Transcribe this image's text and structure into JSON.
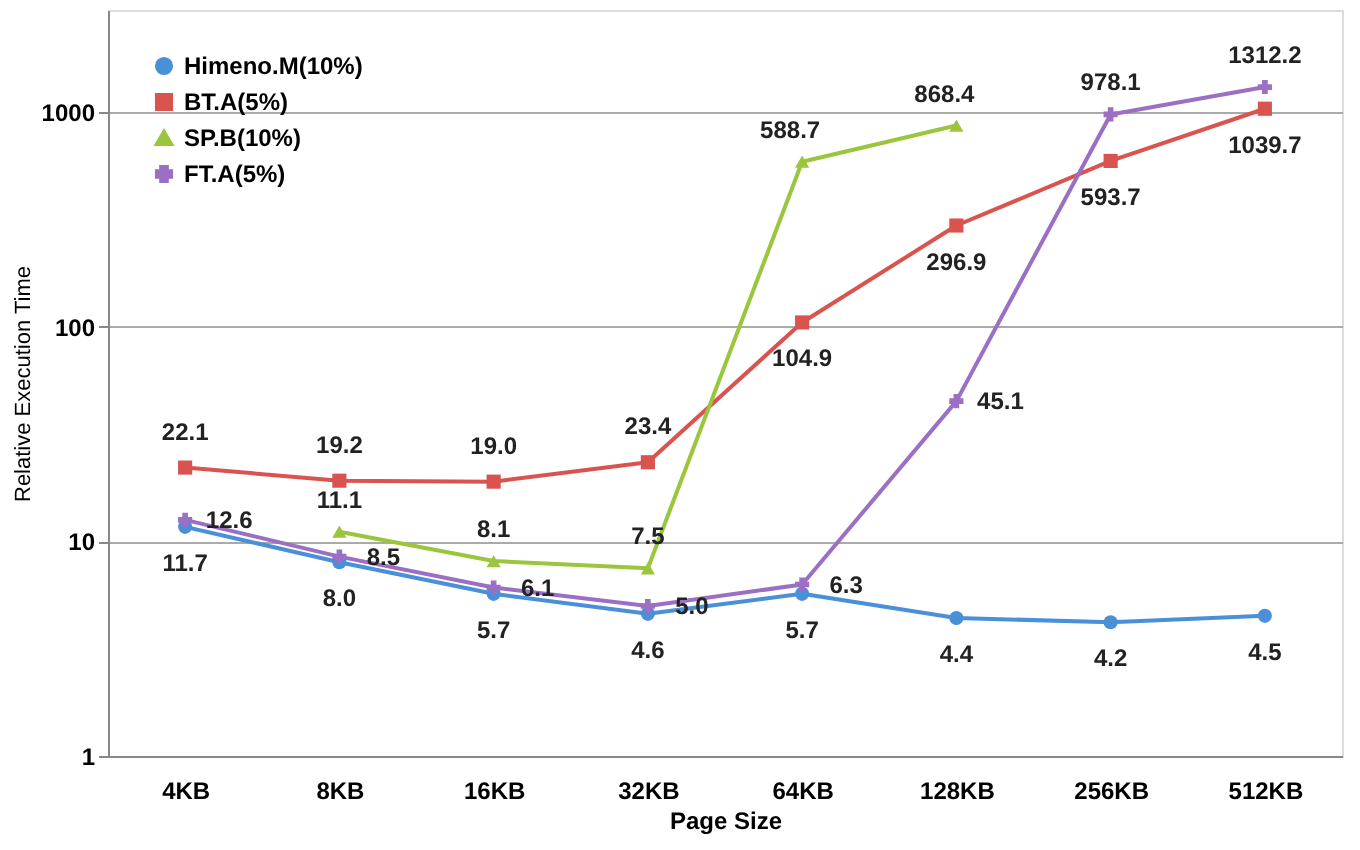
{
  "chart_data": {
    "type": "line",
    "xlabel": "Page Size",
    "ylabel": "Relative Execution Time",
    "categories": [
      "4KB",
      "8KB",
      "16KB",
      "32KB",
      "64KB",
      "128KB",
      "256KB",
      "512KB"
    ],
    "series": [
      {
        "name": "Himeno.M(10%)",
        "color": "#4a90d9",
        "marker": "circle",
        "values": [
          11.7,
          8.0,
          5.7,
          4.6,
          5.7,
          4.4,
          4.2,
          4.5
        ],
        "value_labels": [
          "11.7",
          "8.0",
          "5.7",
          "4.6",
          "5.7",
          "4.4",
          "4.2",
          "4.5"
        ]
      },
      {
        "name": "BT.A(5%)",
        "color": "#d9534f",
        "marker": "square",
        "values": [
          22.1,
          19.2,
          19.0,
          23.4,
          104.9,
          296.9,
          593.7,
          1039.7
        ],
        "value_labels": [
          "22.1",
          "19.2",
          "19.0",
          "23.4",
          "104.9",
          "296.9",
          "593.7",
          "1039.7"
        ]
      },
      {
        "name": "SP.B(10%)",
        "color": "#9bc53d",
        "marker": "triangle",
        "values": [
          null,
          11.1,
          8.1,
          7.5,
          588.7,
          868.4,
          null,
          null
        ],
        "value_labels": [
          null,
          "11.1",
          "8.1",
          "7.5",
          "588.7",
          "868.4",
          null,
          null
        ]
      },
      {
        "name": "FT.A(5%)",
        "color": "#9b6fc4",
        "marker": "cross",
        "values": [
          12.6,
          8.5,
          6.1,
          5.0,
          6.3,
          45.1,
          978.1,
          1312.2
        ],
        "value_labels": [
          "12.6",
          "8.5",
          "6.1",
          "5.0",
          "6.3",
          "45.1",
          "978.1",
          "1312.2"
        ]
      }
    ],
    "log": true,
    "ylim": [
      1,
      3000
    ],
    "yticks": [
      1,
      10,
      100,
      1000
    ],
    "grid": "y",
    "legend": "top left"
  }
}
